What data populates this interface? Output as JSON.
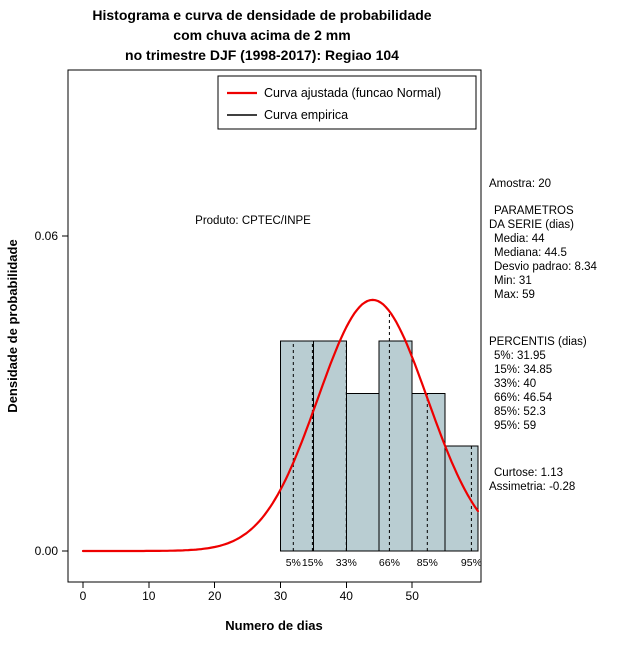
{
  "title": {
    "line1": "Histograma e curva de densidade de probabilidade",
    "line2": "com chuva acima de 2 mm",
    "line3": "no trimestre DJF (1998-2017): Regiao 104"
  },
  "chart_data": {
    "type": "bar",
    "subtype": "histogram-with-density-curve",
    "xlabel": "Numero de dias",
    "ylabel": "Densidade de probabilidade",
    "xlim": [
      0,
      60
    ],
    "ylim": [
      0,
      0.0916
    ],
    "x_ticks": [
      0,
      10,
      20,
      30,
      40,
      50
    ],
    "y_ticks": [
      {
        "value": 0.0,
        "label": "0.00"
      },
      {
        "value": 0.06,
        "label": "0.06"
      }
    ],
    "histogram": {
      "bin_edges": [
        30,
        35,
        40,
        45,
        50,
        55,
        60
      ],
      "densities": [
        0.04,
        0.04,
        0.03,
        0.04,
        0.03,
        0.02
      ],
      "fill": "#b9cdd2",
      "stroke": "#000000"
    },
    "normal_curve": {
      "mean": 44,
      "sd": 8.34,
      "color": "#ee0000",
      "range": [
        0,
        60
      ]
    },
    "percentile_lines": [
      {
        "label": "5%",
        "x": 31.95,
        "top": 0.04
      },
      {
        "label": "15%",
        "x": 34.85,
        "top": 0.04
      },
      {
        "label": "33%",
        "x": 40,
        "top": 0.04
      },
      {
        "label": "66%",
        "x": 46.54,
        "top": 0.0457
      },
      {
        "label": "85%",
        "x": 52.3,
        "top": 0.0301
      },
      {
        "label": "95%",
        "x": 59,
        "top": 0.0201
      }
    ],
    "annotation": "Produto: CPTEC/INPE",
    "legend": [
      {
        "label": "Curva ajustada (funcao Normal)",
        "color": "#ee0000"
      },
      {
        "label": "Curva empirica",
        "color": "#000000"
      }
    ]
  },
  "side_stats": {
    "amostra": "Amostra: 20",
    "param_header1": "PARAMETROS",
    "param_header2": "DA SERIE (dias)",
    "media": "Media: 44",
    "mediana": "Mediana: 44.5",
    "desvio": "Desvio padrao: 8.34",
    "min": "Min: 31",
    "max": "Max: 59",
    "percentis_header": "PERCENTIS (dias)",
    "p5": "5%: 31.95",
    "p15": "15%: 34.85",
    "p33": "33%: 40",
    "p66": "66%: 46.54",
    "p85": "85%: 52.3",
    "p95": "95%: 59",
    "curtose": "Curtose: 1.13",
    "assimetria": "Assimetria: -0.28"
  }
}
